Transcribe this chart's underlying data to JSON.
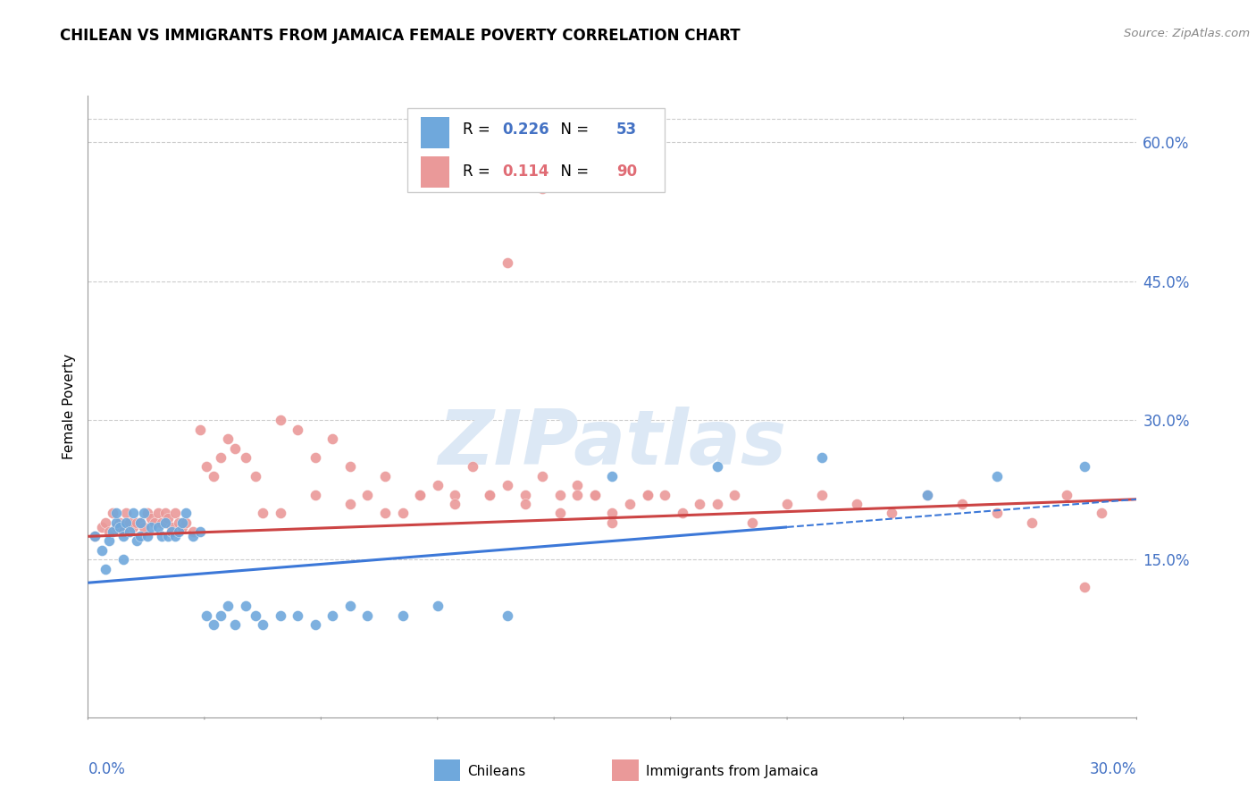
{
  "title": "CHILEAN VS IMMIGRANTS FROM JAMAICA FEMALE POVERTY CORRELATION CHART",
  "source": "Source: ZipAtlas.com",
  "ylabel": "Female Poverty",
  "right_ytick_vals": [
    0.6,
    0.45,
    0.3,
    0.15
  ],
  "right_ytick_labels": [
    "60.0%",
    "45.0%",
    "30.0%",
    "15.0%"
  ],
  "ylim": [
    -0.02,
    0.65
  ],
  "xlim": [
    0.0,
    0.3
  ],
  "chilean_color": "#6fa8dc",
  "jamaica_color": "#ea9999",
  "trendline_chilean_color": "#3c78d8",
  "trendline_jamaica_color": "#cc4444",
  "watermark_color": "#dce8f5",
  "chileans_x": [
    0.002,
    0.004,
    0.005,
    0.006,
    0.007,
    0.008,
    0.008,
    0.009,
    0.01,
    0.01,
    0.011,
    0.012,
    0.013,
    0.014,
    0.015,
    0.015,
    0.016,
    0.017,
    0.018,
    0.02,
    0.021,
    0.022,
    0.023,
    0.024,
    0.025,
    0.026,
    0.027,
    0.028,
    0.03,
    0.032,
    0.034,
    0.036,
    0.038,
    0.04,
    0.042,
    0.045,
    0.048,
    0.05,
    0.055,
    0.06,
    0.065,
    0.07,
    0.075,
    0.08,
    0.09,
    0.1,
    0.12,
    0.15,
    0.18,
    0.21,
    0.24,
    0.26,
    0.285
  ],
  "chileans_y": [
    0.175,
    0.16,
    0.14,
    0.17,
    0.18,
    0.19,
    0.2,
    0.185,
    0.15,
    0.175,
    0.19,
    0.18,
    0.2,
    0.17,
    0.19,
    0.175,
    0.2,
    0.175,
    0.185,
    0.185,
    0.175,
    0.19,
    0.175,
    0.18,
    0.175,
    0.18,
    0.19,
    0.2,
    0.175,
    0.18,
    0.09,
    0.08,
    0.09,
    0.1,
    0.08,
    0.1,
    0.09,
    0.08,
    0.09,
    0.09,
    0.08,
    0.09,
    0.1,
    0.09,
    0.09,
    0.1,
    0.09,
    0.24,
    0.25,
    0.26,
    0.22,
    0.24,
    0.25
  ],
  "jamaicans_x": [
    0.002,
    0.004,
    0.005,
    0.006,
    0.007,
    0.008,
    0.009,
    0.01,
    0.011,
    0.012,
    0.013,
    0.014,
    0.015,
    0.016,
    0.017,
    0.018,
    0.019,
    0.02,
    0.021,
    0.022,
    0.023,
    0.024,
    0.025,
    0.026,
    0.027,
    0.028,
    0.03,
    0.032,
    0.034,
    0.036,
    0.038,
    0.04,
    0.042,
    0.045,
    0.048,
    0.05,
    0.055,
    0.06,
    0.065,
    0.07,
    0.075,
    0.08,
    0.085,
    0.09,
    0.095,
    0.1,
    0.105,
    0.11,
    0.115,
    0.12,
    0.125,
    0.13,
    0.135,
    0.14,
    0.145,
    0.15,
    0.155,
    0.16,
    0.165,
    0.17,
    0.175,
    0.18,
    0.185,
    0.19,
    0.2,
    0.21,
    0.22,
    0.23,
    0.24,
    0.25,
    0.26,
    0.27,
    0.28,
    0.285,
    0.29,
    0.12,
    0.13,
    0.14,
    0.15,
    0.16,
    0.055,
    0.065,
    0.075,
    0.085,
    0.095,
    0.105,
    0.115,
    0.125,
    0.135,
    0.145
  ],
  "jamaicans_y": [
    0.175,
    0.185,
    0.19,
    0.18,
    0.2,
    0.185,
    0.19,
    0.18,
    0.2,
    0.19,
    0.185,
    0.19,
    0.19,
    0.185,
    0.2,
    0.195,
    0.19,
    0.2,
    0.19,
    0.2,
    0.195,
    0.185,
    0.2,
    0.19,
    0.185,
    0.19,
    0.18,
    0.29,
    0.25,
    0.24,
    0.26,
    0.28,
    0.27,
    0.26,
    0.24,
    0.2,
    0.3,
    0.29,
    0.26,
    0.28,
    0.25,
    0.22,
    0.24,
    0.2,
    0.22,
    0.23,
    0.22,
    0.25,
    0.22,
    0.23,
    0.22,
    0.24,
    0.22,
    0.23,
    0.22,
    0.19,
    0.21,
    0.22,
    0.22,
    0.2,
    0.21,
    0.21,
    0.22,
    0.19,
    0.21,
    0.22,
    0.21,
    0.2,
    0.22,
    0.21,
    0.2,
    0.19,
    0.22,
    0.12,
    0.2,
    0.47,
    0.55,
    0.22,
    0.2,
    0.22,
    0.2,
    0.22,
    0.21,
    0.2,
    0.22,
    0.21,
    0.22,
    0.21,
    0.2,
    0.22
  ]
}
